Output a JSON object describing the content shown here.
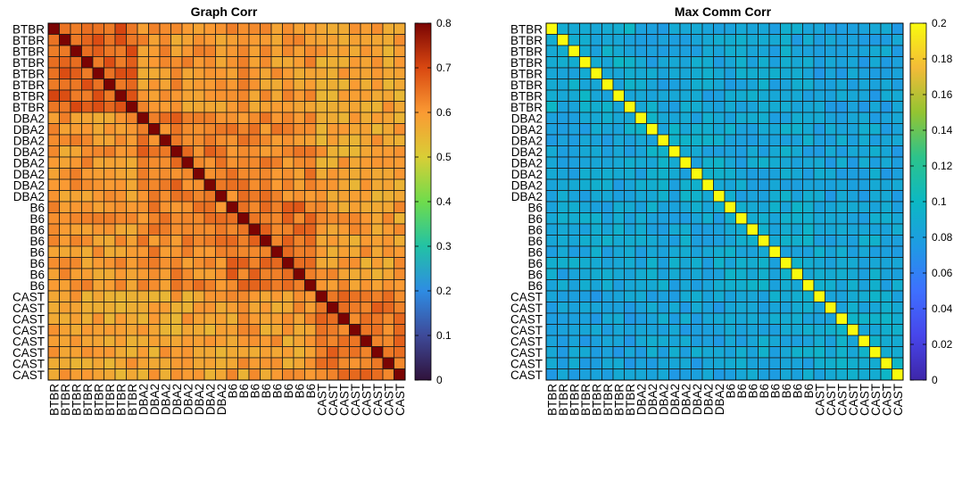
{
  "chart_data": [
    {
      "type": "heatmap",
      "title": "Graph Corr",
      "labels": [
        "BTBR",
        "BTBR",
        "BTBR",
        "BTBR",
        "BTBR",
        "BTBR",
        "BTBR",
        "BTBR",
        "DBA2",
        "DBA2",
        "DBA2",
        "DBA2",
        "DBA2",
        "DBA2",
        "DBA2",
        "DBA2",
        "B6",
        "B6",
        "B6",
        "B6",
        "B6",
        "B6",
        "B6",
        "B6",
        "CAST",
        "CAST",
        "CAST",
        "CAST",
        "CAST",
        "CAST",
        "CAST",
        "CAST"
      ],
      "groups": [
        "BTBR",
        "DBA2",
        "B6",
        "CAST"
      ],
      "group_size": 8,
      "diagonal": 0.8,
      "within_group_mean": [
        0.67,
        0.64,
        0.65,
        0.64
      ],
      "between_group_mean": [
        [
          0.67,
          0.6,
          0.6,
          0.58
        ],
        [
          0.6,
          0.64,
          0.62,
          0.58
        ],
        [
          0.6,
          0.62,
          0.65,
          0.59
        ],
        [
          0.58,
          0.58,
          0.59,
          0.64
        ]
      ],
      "clim": [
        0,
        0.8
      ],
      "colorbar_ticks": [
        "0",
        "0.1",
        "0.2",
        "0.3",
        "0.4",
        "0.5",
        "0.6",
        "0.7",
        "0.8"
      ],
      "colormap": "turbo",
      "xlabel": "",
      "ylabel": ""
    },
    {
      "type": "heatmap",
      "title": "Max Comm Corr",
      "labels": [
        "BTBR",
        "BTBR",
        "BTBR",
        "BTBR",
        "BTBR",
        "BTBR",
        "BTBR",
        "BTBR",
        "DBA2",
        "DBA2",
        "DBA2",
        "DBA2",
        "DBA2",
        "DBA2",
        "DBA2",
        "DBA2",
        "B6",
        "B6",
        "B6",
        "B6",
        "B6",
        "B6",
        "B6",
        "B6",
        "CAST",
        "CAST",
        "CAST",
        "CAST",
        "CAST",
        "CAST",
        "CAST",
        "CAST"
      ],
      "groups": [
        "BTBR",
        "DBA2",
        "B6",
        "CAST"
      ],
      "group_size": 8,
      "diagonal": 0.2,
      "within_group_mean": [
        0.09,
        0.088,
        0.088,
        0.09
      ],
      "between_group_mean": [
        [
          0.09,
          0.085,
          0.085,
          0.082
        ],
        [
          0.085,
          0.088,
          0.086,
          0.083
        ],
        [
          0.085,
          0.086,
          0.088,
          0.085
        ],
        [
          0.082,
          0.083,
          0.085,
          0.09
        ]
      ],
      "clim": [
        0,
        0.2
      ],
      "colorbar_ticks": [
        "0",
        "0.02",
        "0.04",
        "0.06",
        "0.08",
        "0.1",
        "0.12",
        "0.14",
        "0.16",
        "0.18",
        "0.2"
      ],
      "colormap": "parula",
      "xlabel": "",
      "ylabel": ""
    }
  ]
}
